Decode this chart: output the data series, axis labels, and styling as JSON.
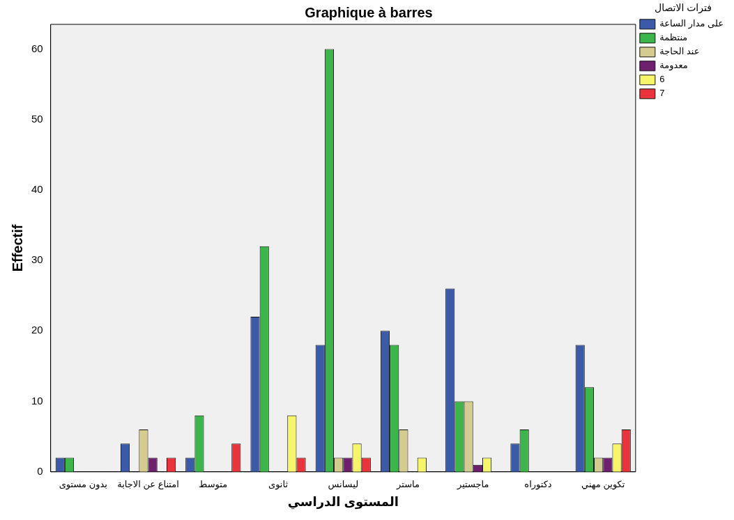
{
  "chart_data": {
    "type": "bar",
    "title": "Graphique à barres",
    "xlabel": "المستوى الدراسي",
    "ylabel": "Effectif",
    "legend_title": "فترات الاتصال",
    "legend": "top right",
    "grid": false,
    "categories": [
      "بدون مستوى",
      "امتناع عن الاجابة",
      "متوسط",
      "ثانوى",
      "ليسانس",
      "ماستر",
      "ماجستير",
      "دكتوراه",
      "تكوين مهني"
    ],
    "ylim": [
      0,
      63.5
    ],
    "yticks": [
      0,
      10,
      20,
      30,
      40,
      50,
      60
    ],
    "series": [
      {
        "name": "على مدار الساعة",
        "color": "#3b5ba8",
        "values": [
          2,
          4,
          2,
          22,
          18,
          20,
          26,
          4,
          18
        ]
      },
      {
        "name": "منتظمة",
        "color": "#3cb54a",
        "values": [
          2,
          null,
          8,
          32,
          60,
          18,
          10,
          6,
          12
        ]
      },
      {
        "name": "عند الحاجة",
        "color": "#d4cc8e",
        "values": [
          null,
          6,
          null,
          null,
          2,
          6,
          10,
          null,
          2
        ]
      },
      {
        "name": "معدومة",
        "color": "#6e1f6e",
        "values": [
          null,
          2,
          null,
          null,
          2,
          null,
          1,
          null,
          2
        ]
      },
      {
        "name": "6",
        "color": "#f7f56a",
        "values": [
          null,
          null,
          null,
          8,
          4,
          2,
          2,
          null,
          4
        ]
      },
      {
        "name": "7",
        "color": "#e8343a",
        "values": [
          null,
          2,
          4,
          2,
          2,
          null,
          null,
          null,
          6
        ]
      }
    ]
  }
}
